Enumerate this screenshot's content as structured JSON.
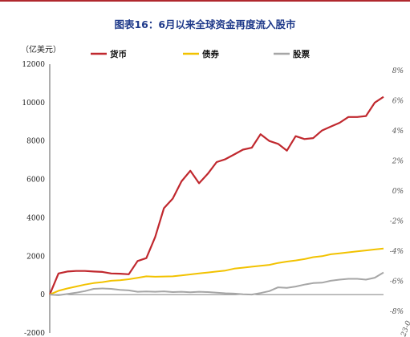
{
  "chart_data": {
    "type": "line",
    "title": "图表16：6月以来全球资金再度流入股市",
    "ylabel": "（亿美元）",
    "ylim": [
      -2000,
      12000
    ],
    "yticks": [
      -2000,
      0,
      2000,
      4000,
      6000,
      8000,
      10000,
      12000
    ],
    "ytick_labels": [
      "-2000",
      "0",
      "2000",
      "4000",
      "6000",
      "8000",
      "10000",
      "12000"
    ],
    "y2lim": [
      -8,
      8
    ],
    "y2ticks": [
      -8,
      -6,
      -4,
      -2,
      0,
      2,
      4,
      6,
      8
    ],
    "y2tick_labels": [
      "-8%",
      "-6%",
      "-4%",
      "-2%",
      "0%",
      "2%",
      "4%",
      "6%",
      "8%"
    ],
    "x_tick_partial": "23-0",
    "legend_position": "top",
    "grid": false,
    "series": [
      {
        "name": "货币",
        "color": "#c0282e",
        "values": [
          0,
          1100,
          1200,
          1230,
          1230,
          1200,
          1180,
          1100,
          1090,
          1060,
          1750,
          1900,
          3000,
          4500,
          5000,
          5900,
          6450,
          5800,
          6300,
          6900,
          7050,
          7300,
          7550,
          7650,
          8350,
          8000,
          7850,
          7500,
          8250,
          8100,
          8150,
          8550,
          8750,
          8950,
          9250,
          9250,
          9300,
          10000,
          10300
        ]
      },
      {
        "name": "债券",
        "color": "#f2c200",
        "values": [
          0,
          200,
          320,
          420,
          520,
          600,
          650,
          720,
          750,
          800,
          870,
          950,
          930,
          940,
          950,
          1000,
          1050,
          1100,
          1150,
          1200,
          1250,
          1350,
          1400,
          1450,
          1500,
          1550,
          1650,
          1720,
          1780,
          1850,
          1950,
          2000,
          2100,
          2150,
          2200,
          2250,
          2300,
          2350,
          2400
        ]
      },
      {
        "name": "股票",
        "color": "#a6a6a6",
        "values": [
          0,
          -30,
          30,
          100,
          180,
          300,
          320,
          300,
          250,
          220,
          150,
          160,
          150,
          170,
          130,
          150,
          120,
          150,
          130,
          100,
          70,
          50,
          20,
          0,
          80,
          180,
          380,
          350,
          420,
          520,
          600,
          620,
          720,
          780,
          820,
          820,
          780,
          880,
          1150
        ]
      }
    ]
  }
}
